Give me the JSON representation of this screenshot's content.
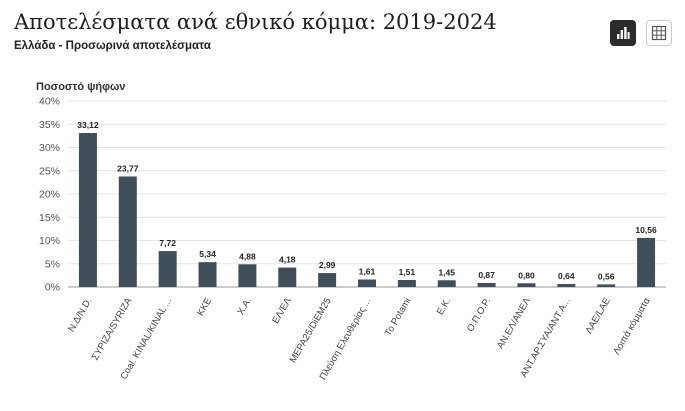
{
  "header": {
    "title": "Αποτελέσματα ανά εθνικό κόμμα: 2019-2024",
    "subtitle": "Ελλάδα - Προσωρινά αποτελέσματα"
  },
  "toolbar": {
    "chart_view_icon": "bar-chart-icon",
    "table_view_icon": "table-grid-icon"
  },
  "chart_data": {
    "type": "bar",
    "ylabel": "Ποσοστό ψήφων",
    "ylim": [
      0,
      40
    ],
    "yticks": [
      0,
      5,
      10,
      15,
      20,
      25,
      30,
      35,
      40
    ],
    "ytick_labels": [
      "0%",
      "5%",
      "10%",
      "15%",
      "20%",
      "25%",
      "30%",
      "35%",
      "40%"
    ],
    "grid": true,
    "bar_color": "#404e5a",
    "categories": [
      "Ν.Δ/Ν.D.",
      "ΣΥΡΙΖΑ/SYRIZA",
      "Coal. KINAL/KINAL ...",
      "ΚΚΕ",
      "Χ.Α.",
      "ΕΛ/ΕΛ",
      "ΜΕΡΑ25/DiEM25",
      "Πλεύση Ελευθερίας ...",
      "To Potami",
      "Ε.Κ.",
      "Ο.Π.Ο.Ρ.",
      "ΑΝ.ΕΛ/ΑΝΕΛ",
      "ΑΝΤ.ΑΡ.ΣΥΑ/ΑΝΤ.Α...",
      "ΛΑΕ/LAE",
      "Λοιπά κόμματα"
    ],
    "values": [
      33.12,
      23.77,
      7.72,
      5.34,
      4.88,
      4.18,
      2.99,
      1.61,
      1.51,
      1.45,
      0.87,
      0.8,
      0.64,
      0.56,
      10.56
    ],
    "value_labels": [
      "33,12",
      "23,77",
      "7,72",
      "5,34",
      "4,88",
      "4,18",
      "2,99",
      "1,61",
      "1,51",
      "1,45",
      "0,87",
      "0,80",
      "0,64",
      "0,56",
      "10,56"
    ]
  }
}
